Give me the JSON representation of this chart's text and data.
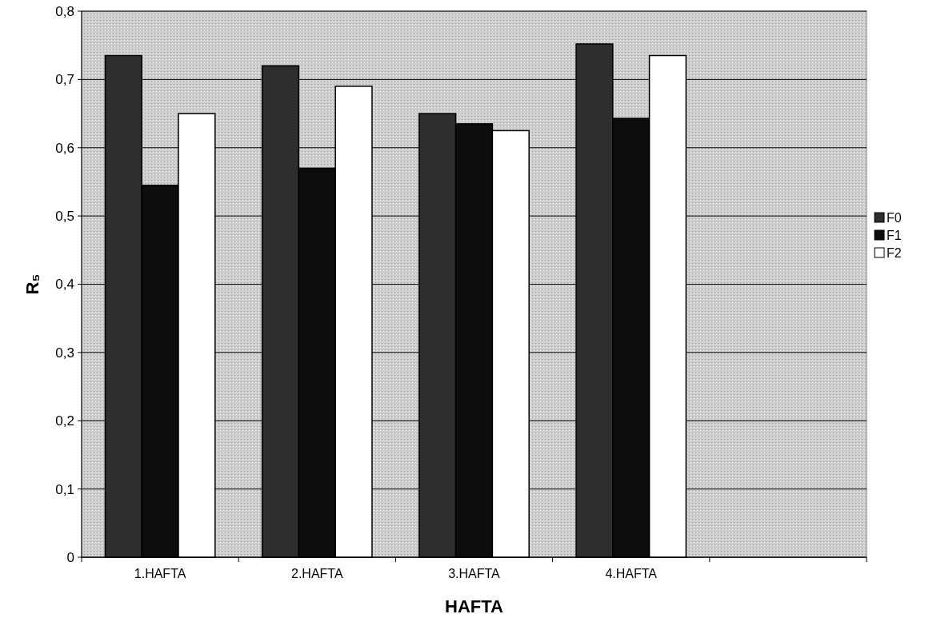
{
  "chart_data": {
    "type": "bar",
    "xlabel": "HAFTA",
    "ylabel": "R₅",
    "categories": [
      "1.HAFTA",
      "2.HAFTA",
      "3.HAFTA",
      "4.HAFTA",
      null
    ],
    "series": [
      {
        "name": "F0",
        "color": "#2e2e2e",
        "values": [
          0.735,
          0.72,
          0.65,
          0.752,
          null
        ]
      },
      {
        "name": "F1",
        "color": "#0d0d0d",
        "values": [
          0.545,
          0.57,
          0.635,
          0.643,
          null
        ]
      },
      {
        "name": "F2",
        "color": "#ffffff",
        "values": [
          0.65,
          0.69,
          0.625,
          0.735,
          null
        ]
      }
    ],
    "ylim": [
      0,
      0.8
    ],
    "yticks": [
      {
        "value": 0,
        "label": "0"
      },
      {
        "value": 0.1,
        "label": "0,1"
      },
      {
        "value": 0.2,
        "label": "0,2"
      },
      {
        "value": 0.3,
        "label": "0,3"
      },
      {
        "value": 0.4,
        "label": "0,4"
      },
      {
        "value": 0.5,
        "label": "0,5"
      },
      {
        "value": 0.6,
        "label": "0,6"
      },
      {
        "value": 0.7,
        "label": "0,7"
      },
      {
        "value": 0.8,
        "label": "0,8"
      }
    ],
    "grid": "y",
    "legend": "right"
  }
}
